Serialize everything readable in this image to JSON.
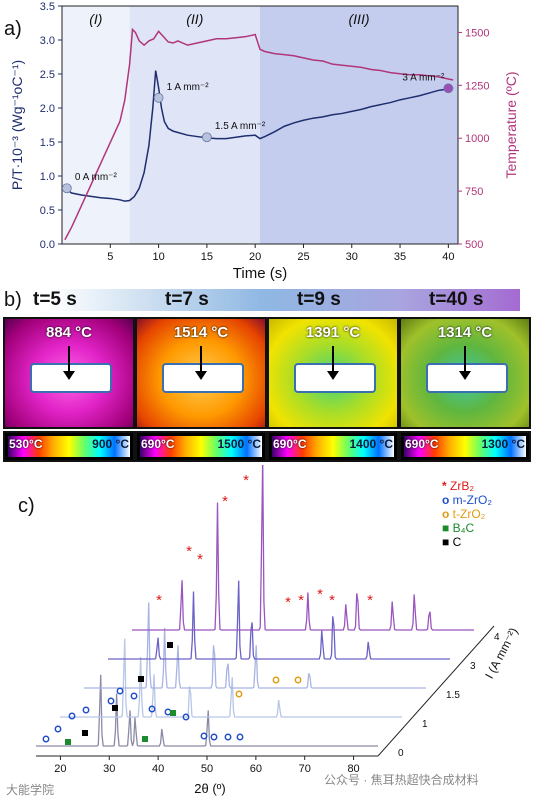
{
  "figure": {
    "panel_a_label": "a)",
    "panel_b_label": "b)",
    "panel_c_label": "c)"
  },
  "colors": {
    "power_curve": "#1f2e6e",
    "temperature_curve": "#b0357a",
    "stage1_bg": "#eef2fa",
    "stage2_bg": "#dfe4f6",
    "stage3_bg": "#c5cdef"
  },
  "chart_data": [
    {
      "type": "line",
      "panel": "a",
      "xlabel": "Time (s)",
      "ylabel": "P/T·10⁻³ (Wg⁻¹oC⁻¹)",
      "ylabel_right": "Temperature (ºC)",
      "xlim": [
        0,
        41
      ],
      "ylim": [
        0,
        3.5
      ],
      "ylim_right": [
        500,
        1625
      ],
      "x_ticks": [
        "5",
        "10",
        "15",
        "20",
        "25",
        "30",
        "35",
        "40"
      ],
      "y_ticks": [
        "0.0",
        "0.5",
        "1.0",
        "1.5",
        "2.0",
        "2.5",
        "3.0",
        "3.5"
      ],
      "y_ticks_right": [
        "500",
        "750",
        "1000",
        "1250",
        "1500"
      ],
      "regions": [
        {
          "label": "(I)",
          "x": [
            0,
            7
          ]
        },
        {
          "label": "(II)",
          "x": [
            7,
            20.5
          ]
        },
        {
          "label": "(III)",
          "x": [
            20.5,
            41
          ]
        }
      ],
      "series": [
        {
          "axis": "left",
          "x": [
            0.3,
            1,
            2,
            3,
            4,
            5,
            6,
            6.5,
            7,
            7.5,
            8,
            8.5,
            9,
            9.4,
            9.7,
            10,
            10.3,
            10.6,
            11,
            11.5,
            12,
            13,
            14,
            15,
            16,
            17,
            18,
            19,
            20,
            20.5,
            21,
            22,
            23,
            24,
            25,
            26,
            27,
            28,
            29,
            30,
            31,
            32,
            33,
            34,
            35,
            36,
            37,
            38,
            39,
            40,
            40.5
          ],
          "y": [
            0.82,
            0.75,
            0.72,
            0.7,
            0.68,
            0.67,
            0.65,
            0.63,
            0.64,
            0.7,
            0.82,
            1.05,
            1.45,
            2.0,
            2.55,
            2.3,
            2.0,
            1.8,
            1.7,
            1.66,
            1.64,
            1.6,
            1.58,
            1.56,
            1.55,
            1.55,
            1.57,
            1.59,
            1.6,
            1.55,
            1.58,
            1.65,
            1.73,
            1.78,
            1.82,
            1.85,
            1.87,
            1.9,
            1.92,
            1.95,
            1.98,
            2.02,
            2.05,
            2.08,
            2.12,
            2.15,
            2.18,
            2.22,
            2.26,
            2.28,
            2.3
          ]
        },
        {
          "axis": "right",
          "x": [
            0.3,
            1,
            2,
            3,
            4,
            5,
            6,
            6.5,
            7,
            7.3,
            7.6,
            8,
            8.5,
            9,
            9.5,
            10,
            10.5,
            11,
            11.5,
            12,
            13,
            14,
            15,
            16,
            17,
            18,
            19,
            20,
            20.5,
            21,
            22,
            23,
            24,
            25,
            26,
            27,
            28,
            29,
            30,
            31,
            32,
            33,
            34,
            35,
            36,
            37,
            38,
            39,
            40,
            40.5
          ],
          "y": [
            520,
            580,
            680,
            780,
            880,
            980,
            1080,
            1180,
            1350,
            1514,
            1500,
            1460,
            1440,
            1460,
            1470,
            1505,
            1480,
            1455,
            1450,
            1460,
            1440,
            1450,
            1460,
            1470,
            1470,
            1475,
            1480,
            1490,
            1420,
            1410,
            1400,
            1395,
            1390,
            1380,
            1370,
            1365,
            1350,
            1345,
            1340,
            1335,
            1325,
            1320,
            1310,
            1305,
            1300,
            1300,
            1295,
            1290,
            1280,
            1275
          ]
        }
      ],
      "markers": [
        {
          "x": 0.5,
          "y": 0.82,
          "label": "0 A mm⁻²"
        },
        {
          "x": 10,
          "y": 2.15,
          "label": "1 A mm⁻²"
        },
        {
          "x": 15,
          "y": 1.57,
          "label": "1.5 A mm⁻²"
        },
        {
          "x": 40,
          "y": 2.29,
          "label": "3 A mm⁻²"
        }
      ]
    },
    {
      "type": "line",
      "panel": "c",
      "xlabel": "2θ (º)",
      "ylabel": "I (A mm⁻²)",
      "x_ticks": [
        "20",
        "30",
        "40",
        "50",
        "60",
        "70",
        "80"
      ],
      "depth_ticks": [
        "0",
        "1",
        "1.5",
        "3",
        "4"
      ],
      "series": [
        {
          "name": "0",
          "color": "#8a8aa6",
          "peaks": [
            [
              28.2,
              0.5
            ],
            [
              31.5,
              0.35
            ],
            [
              34.2,
              0.25
            ],
            [
              35.3,
              0.2
            ],
            [
              40.8,
              0.12
            ],
            [
              50.2,
              0.25
            ]
          ]
        },
        {
          "name": "1",
          "color": "#b8c6e8",
          "peaks": [
            [
              28.2,
              0.55
            ],
            [
              31.5,
              0.4
            ],
            [
              34.2,
              0.3
            ],
            [
              41.6,
              0.25
            ],
            [
              50.2,
              0.28
            ],
            [
              59.8,
              0.12
            ]
          ]
        },
        {
          "name": "1.5",
          "color": "#a9b4e4",
          "peaks": [
            [
              28.2,
              0.6
            ],
            [
              31.5,
              0.4
            ],
            [
              34.2,
              0.3
            ],
            [
              41.6,
              0.35
            ],
            [
              44.4,
              0.2
            ],
            [
              50.2,
              0.3
            ],
            [
              61.1,
              0.12
            ]
          ]
        },
        {
          "name": "3",
          "color": "#6b63c6",
          "peaks": [
            [
              25.2,
              0.15
            ],
            [
              32.5,
              0.45
            ],
            [
              41.7,
              0.55
            ],
            [
              44.4,
              0.3
            ],
            [
              58.8,
              0.2
            ],
            [
              61.1,
              0.35
            ],
            [
              68.3,
              0.12
            ]
          ]
        },
        {
          "name": "4",
          "color": "#9b55be",
          "peaks": [
            [
              25.2,
              0.35
            ],
            [
              32.5,
              0.85
            ],
            [
              41.7,
              1.2
            ],
            [
              51.0,
              0.25
            ],
            [
              58.8,
              0.18
            ],
            [
              61.1,
              0.3
            ],
            [
              68.3,
              0.2
            ],
            [
              72.8,
              0.25
            ],
            [
              75.9,
              0.15
            ]
          ]
        }
      ]
    }
  ],
  "panel_b": {
    "frames": [
      {
        "time": "t=5 s",
        "temp": "884 °C",
        "min": "530°C",
        "max": "900 °C",
        "bg": "radial-gradient(ellipse at 50% 55%, #ff66e6 0%, #e224c8 40%, #a2007a 80%, #5a0050 100%)"
      },
      {
        "time": "t=7 s",
        "temp": "1514 °C",
        "min": "690°C",
        "max": "1500 °C",
        "bg": "radial-gradient(ellipse at 50% 55%, #ffcc55 0%, #ff9a00 45%, #e54400 80%, #8a0e2a 100%)"
      },
      {
        "time": "t=9 s",
        "temp": "1391 °C",
        "min": "690°C",
        "max": "1400 °C",
        "bg": "radial-gradient(ellipse at 50% 55%, #3fd37a 0%, #a6dd2a 40%, #f1e300 75%, #c8b800 100%)"
      },
      {
        "time": "t=40 s",
        "temp": "1314 °C",
        "min": "690°C",
        "max": "1300 °C",
        "bg": "radial-gradient(ellipse at 50% 55%, #3ec8a8 0%, #5fb63f 40%, #9fc12a 75%, #5f7d13 100%)"
      }
    ]
  },
  "legend_c": [
    {
      "label": "ZrB₂",
      "symbol": "*",
      "color": "#e0191b"
    },
    {
      "label": "m-ZrO₂",
      "symbol": "o",
      "color": "#1f4ec8"
    },
    {
      "label": "t-ZrO₂",
      "symbol": "o",
      "color": "#e29b14"
    },
    {
      "label": "B₄C",
      "symbol": "■",
      "color": "#1b8b2c"
    },
    {
      "label": "C",
      "symbol": "■",
      "color": "#000000"
    }
  ],
  "watermark": {
    "left": "大能学院",
    "right": "公众号 · 焦耳热超快合成材料"
  }
}
